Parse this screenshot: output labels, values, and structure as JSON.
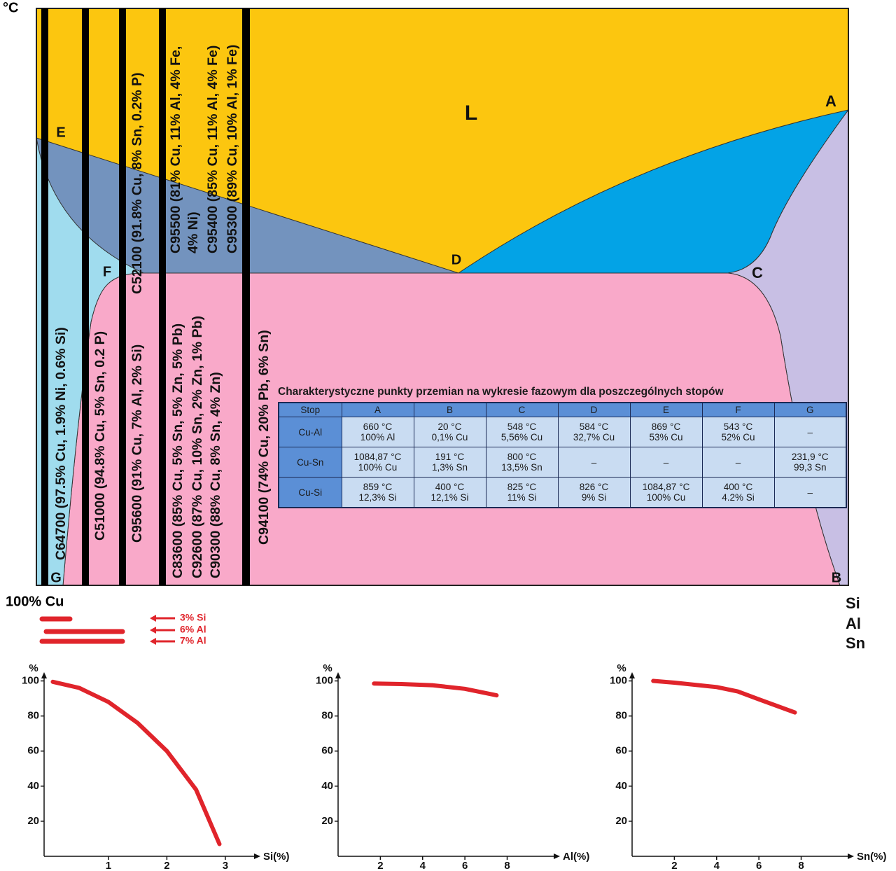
{
  "diagram": {
    "unit": "°C",
    "point_labels": [
      "L",
      "A",
      "E",
      "D",
      "C",
      "F",
      "G",
      "B"
    ],
    "alloys": [
      {
        "lines": [
          "C64700 (97.5% Cu, 1.9% Ni, 0.6% Si)"
        ]
      },
      {
        "lines": [
          "C51000 (94.8% Cu, 5% Sn, 0.2 P)"
        ]
      },
      {
        "lines": [
          "C95600 (91% Cu, 7% Al, 2% Si)"
        ]
      },
      {
        "lines": [
          "C52100 (91.8% Cu, 8% Sn, 0.2% P)"
        ]
      },
      {
        "lines": [
          "C83600 (85% Cu, 5% Sn, 5% Zn, 5% Pb)",
          "C92600 (87% Cu, 10% Sn, 2% Zn, 1% Pb)",
          "C90300 (88% Cu, 8% Sn, 4% Zn)"
        ]
      },
      {
        "lines": [
          "C95500 (81% Cu, 11% Al, 4% Fe,",
          "4% Ni)",
          "C95400 (85% Cu, 11% Al, 4% Fe)",
          "C95300 (89% Cu, 10% Al, 1% Fe)"
        ]
      },
      {
        "lines": [
          "C94100 (74% Cu, 20% Pb, 6% Sn)"
        ]
      }
    ],
    "base": "100% Cu",
    "elements": [
      "Si",
      "Al",
      "Sn"
    ],
    "additions": [
      "3% Si",
      "6% Al",
      "7% Al"
    ]
  },
  "table": {
    "title": "Charakterystyczne punkty przemian na wykresie fazowym dla poszczególnych stopów",
    "header": [
      "Stop",
      "A",
      "B",
      "C",
      "D",
      "E",
      "F",
      "G"
    ],
    "rows": [
      [
        [
          "Cu-Al"
        ],
        [
          "660 °C",
          "100% Al"
        ],
        [
          "20 °C",
          "0,1% Cu"
        ],
        [
          "548 °C",
          "5,56% Cu"
        ],
        [
          "584 °C",
          "32,7% Cu"
        ],
        [
          "869 °C",
          "53% Cu"
        ],
        [
          "543 °C",
          "52% Cu"
        ],
        [
          "–"
        ]
      ],
      [
        [
          "Cu-Sn"
        ],
        [
          "1084,87 °C",
          "100% Cu"
        ],
        [
          "191 °C",
          "1,3% Sn"
        ],
        [
          "800 °C",
          "13,5% Sn"
        ],
        [
          "–"
        ],
        [
          "–"
        ],
        [
          "–"
        ],
        [
          "231,9 °C",
          "99,3 Sn"
        ]
      ],
      [
        [
          "Cu-Si"
        ],
        [
          "859 °C",
          "12,3% Si"
        ],
        [
          "400 °C",
          "12,1% Si"
        ],
        [
          "825 °C",
          "11% Si"
        ],
        [
          "826 °C",
          "9% Si"
        ],
        [
          "1084,87 °C",
          "100% Cu"
        ],
        [
          "400 °C",
          "4.2% Si"
        ],
        [
          "–"
        ]
      ]
    ]
  },
  "chart_data": [
    {
      "type": "line",
      "x_label": "Si(%)",
      "y_label": "%",
      "color": "#e0242b",
      "x": [
        0.05,
        0.5,
        1,
        1.5,
        2,
        2.5,
        2.9
      ],
      "values": [
        99.5,
        96,
        88,
        76,
        60,
        38,
        7
      ],
      "xlim": [
        -0.1,
        3.6
      ],
      "ylim": [
        0,
        105
      ],
      "xticks": [
        1,
        2,
        3
      ],
      "yticks": [
        20,
        40,
        60,
        80,
        100
      ]
    },
    {
      "type": "line",
      "x_label": "Al(%)",
      "y_label": "%",
      "color": "#e0242b",
      "x": [
        1.7,
        3,
        4.5,
        6,
        7.5
      ],
      "values": [
        98.5,
        98.2,
        97.5,
        95.5,
        91.8
      ],
      "xlim": [
        0,
        10.5
      ],
      "ylim": [
        0,
        105
      ],
      "xticks": [
        2,
        4,
        6,
        8
      ],
      "yticks": [
        20,
        40,
        60,
        80,
        100
      ]
    },
    {
      "type": "line",
      "x_label": "Sn(%)",
      "y_label": "%",
      "color": "#e0242b",
      "x": [
        1,
        2,
        4,
        5,
        6,
        7.7
      ],
      "values": [
        100,
        99,
        96.5,
        94,
        89.5,
        82
      ],
      "xlim": [
        0,
        10.5
      ],
      "ylim": [
        0,
        105
      ],
      "xticks": [
        2,
        4,
        6,
        8
      ],
      "yticks": [
        20,
        40,
        60,
        80,
        100
      ]
    }
  ]
}
